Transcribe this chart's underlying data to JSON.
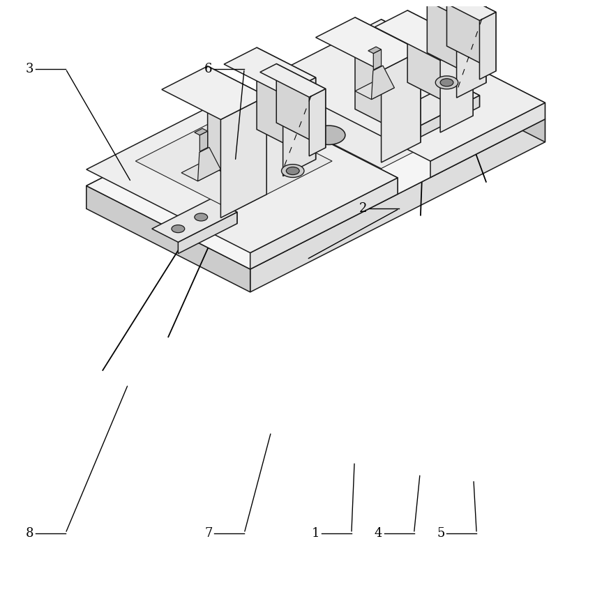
{
  "bg_color": "#ffffff",
  "line_color": "#1a1a1a",
  "line_width": 1.1,
  "fig_width": 8.54,
  "fig_height": 8.72,
  "dpi": 100,
  "iso_ox": 0.42,
  "iso_oy": 0.52,
  "iso_sx": 0.055,
  "iso_sy": 0.028,
  "iso_sz": 0.055
}
